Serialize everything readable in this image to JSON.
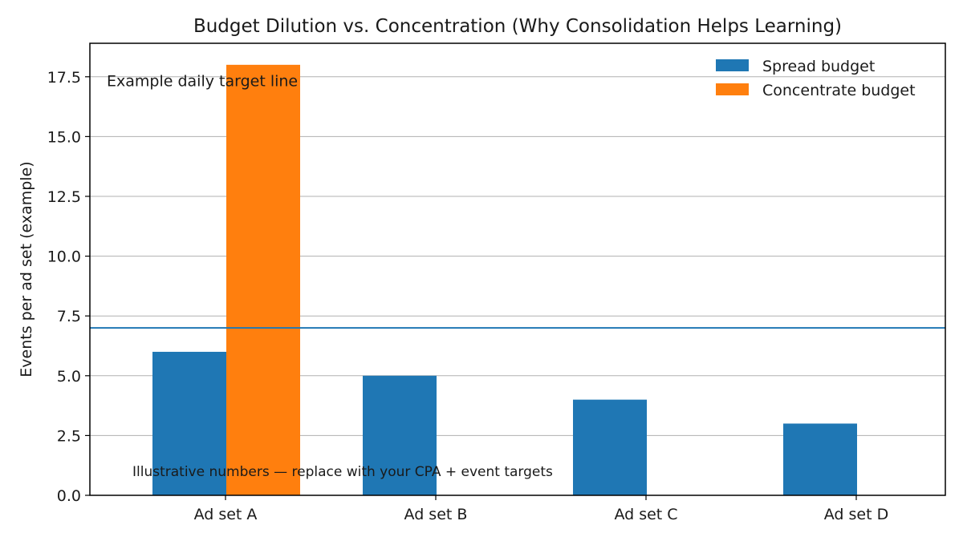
{
  "chart_data": {
    "type": "bar",
    "title": "Budget Dilution vs. Concentration (Why Consolidation Helps Learning)",
    "xlabel": "",
    "ylabel": "Events per ad set (example)",
    "categories": [
      "Ad set A",
      "Ad set B",
      "Ad set C",
      "Ad set D"
    ],
    "series": [
      {
        "name": "Spread budget",
        "color": "#1f77b4",
        "values": [
          6,
          5,
          4,
          3
        ]
      },
      {
        "name": "Concentrate budget",
        "color": "#ff7f0e",
        "values": [
          18,
          0,
          0,
          0
        ]
      }
    ],
    "ylim": [
      0,
      18.9
    ],
    "yticks": [
      "0.0",
      "2.5",
      "5.0",
      "7.5",
      "10.0",
      "12.5",
      "15.0",
      "17.5"
    ],
    "grid": "horizontal",
    "legend": "top-right",
    "target_line": {
      "value": 7,
      "color": "#1f77b4",
      "label": "Example daily target line"
    },
    "note": "Illustrative numbers — replace with your CPA + event targets"
  }
}
